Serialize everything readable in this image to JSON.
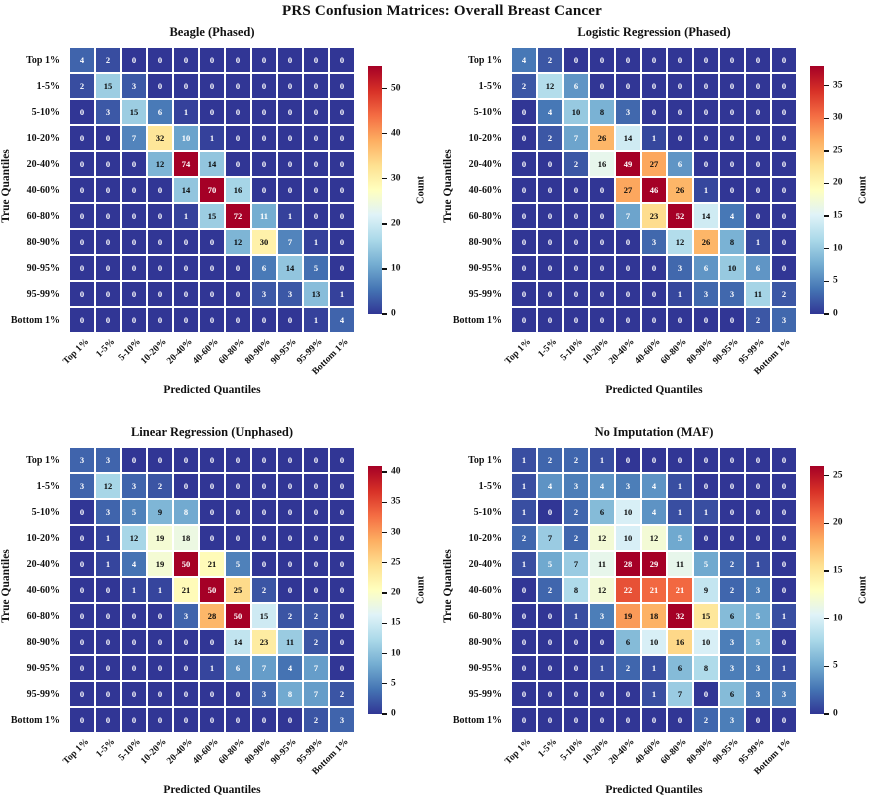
{
  "figure_title": "PRS Confusion Matrices: Overall Breast Cancer",
  "axis": {
    "x_label": "Predicted Quantiles",
    "y_label": "True Quantiles",
    "quantiles": [
      "Top 1%",
      "1-5%",
      "5-10%",
      "10-20%",
      "20-40%",
      "40-60%",
      "60-80%",
      "80-90%",
      "90-95%",
      "95-99%",
      "Bottom 1%"
    ]
  },
  "colorbar_label": "Count",
  "colormap": [
    "#313695",
    "#4575b4",
    "#74add1",
    "#abd9e9",
    "#e0f3f8",
    "#ffffbf",
    "#fee090",
    "#fdae61",
    "#f46d43",
    "#d73027",
    "#a50026"
  ],
  "annotation_colors": {
    "light_text": "#ffffff",
    "dark_text": "#0a0a0a"
  },
  "chart_data": [
    {
      "type": "heatmap",
      "title": "Beagle (Phased)",
      "xlabel": "Predicted Quantiles",
      "ylabel": "True Quantiles",
      "x_categories": [
        "Top 1%",
        "1-5%",
        "5-10%",
        "10-20%",
        "20-40%",
        "40-60%",
        "60-80%",
        "80-90%",
        "90-95%",
        "95-99%",
        "Bottom 1%"
      ],
      "y_categories": [
        "Top 1%",
        "1-5%",
        "5-10%",
        "10-20%",
        "20-40%",
        "40-60%",
        "60-80%",
        "80-90%",
        "90-95%",
        "95-99%",
        "Bottom 1%"
      ],
      "values": [
        [
          4,
          2,
          0,
          0,
          0,
          0,
          0,
          0,
          0,
          0,
          0
        ],
        [
          2,
          15,
          3,
          0,
          0,
          0,
          0,
          0,
          0,
          0,
          0
        ],
        [
          0,
          3,
          15,
          6,
          1,
          0,
          0,
          0,
          0,
          0,
          0
        ],
        [
          0,
          0,
          7,
          32,
          10,
          1,
          0,
          0,
          0,
          0,
          0
        ],
        [
          0,
          0,
          0,
          12,
          74,
          14,
          0,
          0,
          0,
          0,
          0
        ],
        [
          0,
          0,
          0,
          0,
          14,
          70,
          16,
          0,
          0,
          0,
          0
        ],
        [
          0,
          0,
          0,
          0,
          1,
          15,
          72,
          11,
          1,
          0,
          0
        ],
        [
          0,
          0,
          0,
          0,
          0,
          0,
          12,
          30,
          7,
          1,
          0
        ],
        [
          0,
          0,
          0,
          0,
          0,
          0,
          0,
          6,
          14,
          5,
          0
        ],
        [
          0,
          0,
          0,
          0,
          0,
          0,
          0,
          3,
          3,
          13,
          1
        ],
        [
          0,
          0,
          0,
          0,
          0,
          0,
          0,
          0,
          0,
          1,
          4
        ]
      ],
      "vmax": 55,
      "colorbar_ticks": [
        0,
        10,
        20,
        30,
        40,
        50
      ],
      "colorbar_label": "Count"
    },
    {
      "type": "heatmap",
      "title": "Logistic Regression (Phased)",
      "xlabel": "Predicted Quantiles",
      "ylabel": "True Quantiles",
      "x_categories": [
        "Top 1%",
        "1-5%",
        "5-10%",
        "10-20%",
        "20-40%",
        "40-60%",
        "60-80%",
        "80-90%",
        "90-95%",
        "95-99%",
        "Bottom 1%"
      ],
      "y_categories": [
        "Top 1%",
        "1-5%",
        "5-10%",
        "10-20%",
        "20-40%",
        "40-60%",
        "60-80%",
        "80-90%",
        "90-95%",
        "95-99%",
        "Bottom 1%"
      ],
      "values": [
        [
          4,
          2,
          0,
          0,
          0,
          0,
          0,
          0,
          0,
          0,
          0
        ],
        [
          2,
          12,
          6,
          0,
          0,
          0,
          0,
          0,
          0,
          0,
          0
        ],
        [
          0,
          4,
          10,
          8,
          3,
          0,
          0,
          0,
          0,
          0,
          0
        ],
        [
          0,
          2,
          7,
          26,
          14,
          1,
          0,
          0,
          0,
          0,
          0
        ],
        [
          0,
          0,
          2,
          16,
          49,
          27,
          6,
          0,
          0,
          0,
          0
        ],
        [
          0,
          0,
          0,
          0,
          27,
          46,
          26,
          1,
          0,
          0,
          0
        ],
        [
          0,
          0,
          0,
          0,
          7,
          23,
          52,
          14,
          4,
          0,
          0
        ],
        [
          0,
          0,
          0,
          0,
          0,
          3,
          12,
          26,
          8,
          1,
          0
        ],
        [
          0,
          0,
          0,
          0,
          0,
          0,
          3,
          6,
          10,
          6,
          0
        ],
        [
          0,
          0,
          0,
          0,
          0,
          0,
          1,
          3,
          3,
          11,
          2
        ],
        [
          0,
          0,
          0,
          0,
          0,
          0,
          0,
          0,
          0,
          2,
          3
        ]
      ],
      "vmax": 38,
      "colorbar_ticks": [
        0,
        5,
        10,
        15,
        20,
        25,
        30,
        35
      ],
      "colorbar_label": "Count"
    },
    {
      "type": "heatmap",
      "title": "Linear Regression (Unphased)",
      "xlabel": "Predicted Quantiles",
      "ylabel": "True Quantiles",
      "x_categories": [
        "Top 1%",
        "1-5%",
        "5-10%",
        "10-20%",
        "20-40%",
        "40-60%",
        "60-80%",
        "80-90%",
        "90-95%",
        "95-99%",
        "Bottom 1%"
      ],
      "y_categories": [
        "Top 1%",
        "1-5%",
        "5-10%",
        "10-20%",
        "20-40%",
        "40-60%",
        "60-80%",
        "80-90%",
        "90-95%",
        "95-99%",
        "Bottom 1%"
      ],
      "values": [
        [
          3,
          3,
          0,
          0,
          0,
          0,
          0,
          0,
          0,
          0,
          0
        ],
        [
          3,
          12,
          3,
          2,
          0,
          0,
          0,
          0,
          0,
          0,
          0
        ],
        [
          0,
          3,
          5,
          9,
          8,
          0,
          0,
          0,
          0,
          0,
          0
        ],
        [
          0,
          1,
          12,
          19,
          18,
          0,
          0,
          0,
          0,
          0,
          0
        ],
        [
          0,
          1,
          4,
          19,
          50,
          21,
          5,
          0,
          0,
          0,
          0
        ],
        [
          0,
          0,
          1,
          1,
          21,
          50,
          25,
          2,
          0,
          0,
          0
        ],
        [
          0,
          0,
          0,
          0,
          3,
          28,
          50,
          15,
          2,
          2,
          0
        ],
        [
          0,
          0,
          0,
          0,
          0,
          0,
          14,
          23,
          11,
          2,
          0
        ],
        [
          0,
          0,
          0,
          0,
          0,
          1,
          6,
          7,
          4,
          7,
          0
        ],
        [
          0,
          0,
          0,
          0,
          0,
          0,
          0,
          3,
          8,
          7,
          2
        ],
        [
          0,
          0,
          0,
          0,
          0,
          0,
          0,
          0,
          0,
          2,
          3
        ]
      ],
      "vmax": 41,
      "colorbar_ticks": [
        0,
        5,
        10,
        15,
        20,
        25,
        30,
        35,
        40
      ],
      "colorbar_label": "Count"
    },
    {
      "type": "heatmap",
      "title": "No Imputation (MAF)",
      "xlabel": "Predicted Quantiles",
      "ylabel": "True Quantiles",
      "x_categories": [
        "Top 1%",
        "1-5%",
        "5-10%",
        "10-20%",
        "20-40%",
        "40-60%",
        "60-80%",
        "80-90%",
        "90-95%",
        "95-99%",
        "Bottom 1%"
      ],
      "y_categories": [
        "Top 1%",
        "1-5%",
        "5-10%",
        "10-20%",
        "20-40%",
        "40-60%",
        "60-80%",
        "80-90%",
        "90-95%",
        "95-99%",
        "Bottom 1%"
      ],
      "values": [
        [
          1,
          2,
          2,
          1,
          0,
          0,
          0,
          0,
          0,
          0,
          0
        ],
        [
          1,
          4,
          3,
          4,
          3,
          4,
          1,
          0,
          0,
          0,
          0
        ],
        [
          1,
          0,
          2,
          6,
          10,
          4,
          1,
          1,
          0,
          0,
          0
        ],
        [
          2,
          7,
          2,
          12,
          10,
          12,
          5,
          0,
          0,
          0,
          0
        ],
        [
          1,
          5,
          7,
          11,
          28,
          29,
          11,
          5,
          2,
          1,
          0
        ],
        [
          0,
          2,
          8,
          12,
          22,
          21,
          21,
          9,
          2,
          3,
          0
        ],
        [
          0,
          0,
          1,
          3,
          19,
          18,
          32,
          15,
          6,
          5,
          1
        ],
        [
          0,
          0,
          0,
          0,
          6,
          10,
          16,
          10,
          3,
          5,
          0
        ],
        [
          0,
          0,
          0,
          1,
          2,
          1,
          6,
          8,
          3,
          3,
          1
        ],
        [
          0,
          0,
          0,
          0,
          0,
          1,
          7,
          0,
          6,
          3,
          3
        ],
        [
          0,
          0,
          0,
          0,
          0,
          0,
          0,
          2,
          3,
          0,
          0
        ]
      ],
      "vmax": 26,
      "colorbar_ticks": [
        0,
        5,
        10,
        15,
        20,
        25
      ],
      "colorbar_label": "Count"
    }
  ]
}
